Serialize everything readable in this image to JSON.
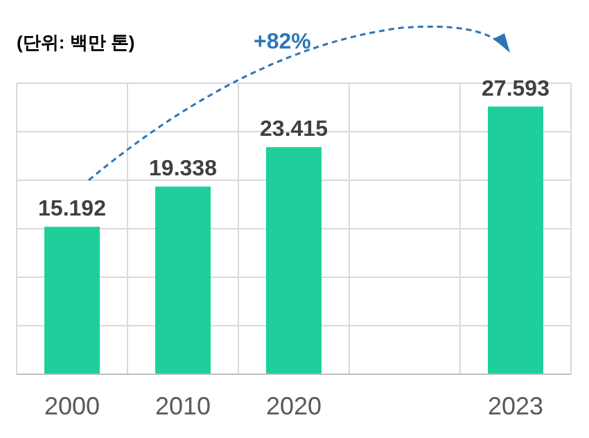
{
  "chart_data": {
    "type": "bar",
    "annotations": [
      "(단위: 백만 톤)",
      "+82%"
    ],
    "categories": [
      "2000",
      "2010",
      "2020",
      null,
      "2023"
    ],
    "values": [
      15.192,
      19.338,
      23.415,
      null,
      27.593
    ],
    "color": "#1ecf9b",
    "ylim": [
      0,
      30
    ],
    "yticks": [
      0,
      5,
      10,
      15,
      20,
      25,
      30
    ],
    "grid": true,
    "tick_labels": "x",
    "data_labels": true
  }
}
